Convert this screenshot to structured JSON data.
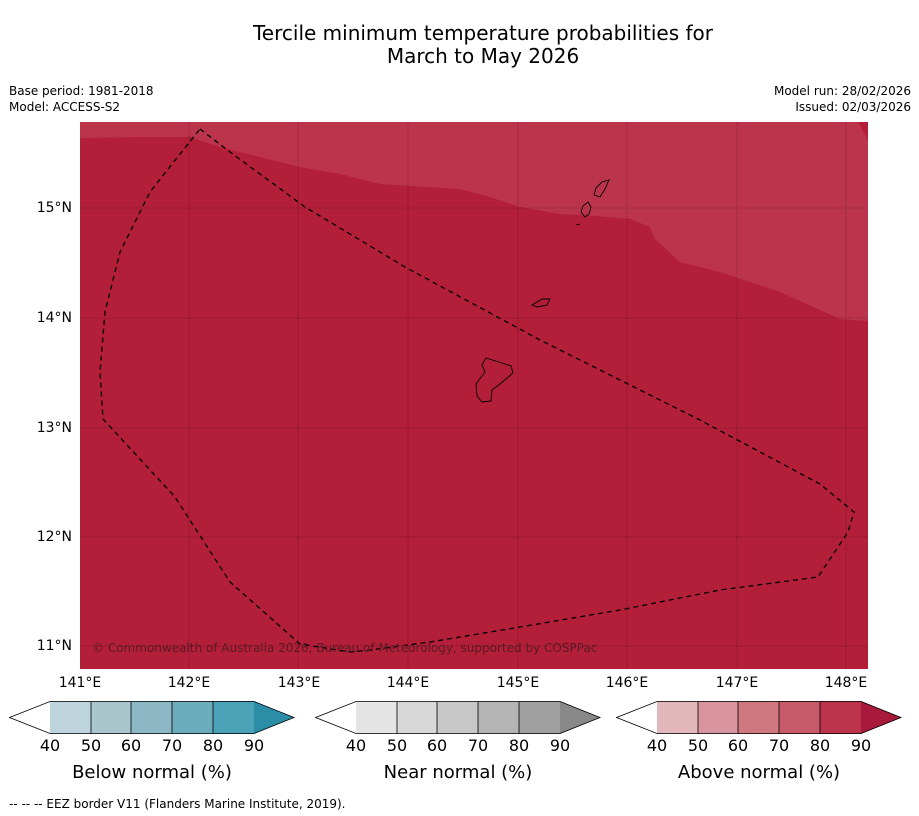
{
  "title": {
    "line1": "Tercile minimum temperature probabilities for",
    "line2": "March to May 2026"
  },
  "meta": {
    "base_period": "Base period: 1981-2018",
    "model": "Model: ACCESS-S2",
    "model_run": "Model run: 28/02/2026",
    "issued": "Issued: 02/03/2026"
  },
  "map": {
    "lat_labels": [
      "15°N",
      "14°N",
      "13°N",
      "12°N",
      "11°N"
    ],
    "lon_labels": [
      "141°E",
      "142°E",
      "143°E",
      "144°E",
      "145°E",
      "146°E",
      "147°E",
      "148°E"
    ],
    "colors": {
      "above_80_90": "#b31e39",
      "above_70_80": "#bc344c",
      "eez_line": "#000000"
    },
    "copyright": "© Commonwealth of Australia 2026, Bureau of Meteorology, supported by COSPPac"
  },
  "legend": {
    "ticks": [
      "40",
      "50",
      "60",
      "70",
      "80",
      "90"
    ],
    "below": {
      "label": "Below normal (%)",
      "colors": [
        "#ffffff",
        "#bed4dc",
        "#a9c6cd",
        "#8bb8c4",
        "#6cadbd",
        "#4ba2b6",
        "#2b8ea6"
      ]
    },
    "near": {
      "label": "Near normal (%)",
      "colors": [
        "#ffffff",
        "#e4e4e4",
        "#d8d8d8",
        "#c8c8c8",
        "#b4b4b4",
        "#a0a0a0",
        "#888888"
      ]
    },
    "above": {
      "label": "Above normal (%)",
      "colors": [
        "#ffffff",
        "#e2b8bd",
        "#d8959e",
        "#cf7880",
        "#c75a68",
        "#bc344c",
        "#a8193b"
      ]
    }
  },
  "footnote": "-- -- -- EEZ border V11 (Flanders Marine Institute, 2019)."
}
